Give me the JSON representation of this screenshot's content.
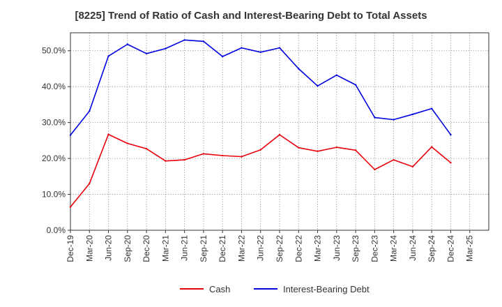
{
  "chart_data": {
    "type": "line",
    "title": "[8225]  Trend of Ratio of Cash and Interest-Bearing Debt to Total Assets",
    "xlabel": "",
    "ylabel": "",
    "ylim": [
      0,
      55
    ],
    "y_ticks": [
      0,
      10,
      20,
      30,
      40,
      50
    ],
    "y_tick_labels": [
      "0.0%",
      "10.0%",
      "20.0%",
      "30.0%",
      "40.0%",
      "50.0%"
    ],
    "x_tick_labels": [
      "Dec-19",
      "Mar-20",
      "Jun-20",
      "Sep-20",
      "Dec-20",
      "Mar-21",
      "Jun-21",
      "Sep-21",
      "Dec-21",
      "Mar-22",
      "Jun-22",
      "Sep-22",
      "Dec-22",
      "Mar-23",
      "Jun-23",
      "Sep-23",
      "Dec-23",
      "Mar-24",
      "Jun-24",
      "Sep-24",
      "Dec-24",
      "Mar-25"
    ],
    "categories": [
      "Dec-19",
      "Mar-20",
      "Jun-20",
      "Sep-20",
      "Dec-20",
      "Mar-21",
      "Jun-21",
      "Sep-21",
      "Dec-21",
      "Mar-22",
      "Jun-22",
      "Sep-22",
      "Dec-22",
      "Mar-23",
      "Jun-23",
      "Sep-23",
      "Dec-23",
      "Mar-24",
      "Jun-24",
      "Sep-24",
      "Dec-24"
    ],
    "grid": true,
    "legend_position": "bottom",
    "series": [
      {
        "name": "Cash",
        "color": "#e8000b",
        "values": [
          6.5,
          13.0,
          26.7,
          24.2,
          22.7,
          19.3,
          19.6,
          21.3,
          20.8,
          20.5,
          22.4,
          26.6,
          23.0,
          22.0,
          23.1,
          22.3,
          16.9,
          19.6,
          17.7,
          23.2,
          18.8
        ]
      },
      {
        "name": "Interest-Bearing Debt",
        "color": "#0000e0",
        "values": [
          26.5,
          33.2,
          48.5,
          51.8,
          49.2,
          50.6,
          53.0,
          52.6,
          48.4,
          50.8,
          49.6,
          50.8,
          45.0,
          40.2,
          43.2,
          40.5,
          31.4,
          30.8,
          32.3,
          33.9,
          26.6
        ]
      }
    ]
  }
}
